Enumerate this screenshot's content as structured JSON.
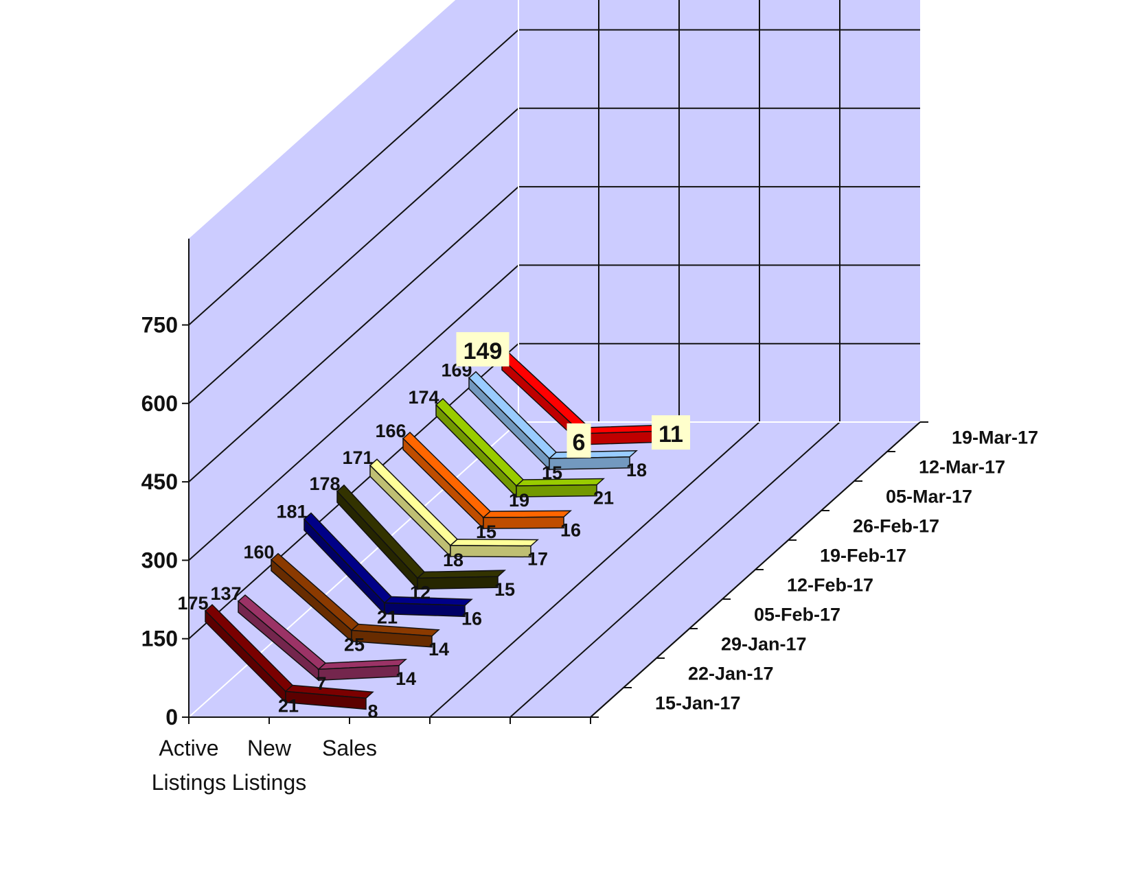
{
  "chart_data": {
    "type": "line",
    "categories": [
      {
        "line1": "Active",
        "line2": "Listings"
      },
      {
        "line1": "New",
        "line2": "Listings"
      },
      {
        "line1": "Sales",
        "line2": ""
      }
    ],
    "ylim": [
      0,
      750
    ],
    "yticks": [
      "0",
      "150",
      "300",
      "450",
      "600",
      "750"
    ],
    "grid": true,
    "view": "3d",
    "series": [
      {
        "name": "15-Jan-17",
        "color": "#7b0000",
        "values": [
          175,
          21,
          8
        ]
      },
      {
        "name": "22-Jan-17",
        "color": "#9b3366",
        "values": [
          137,
          7,
          14
        ]
      },
      {
        "name": "29-Jan-17",
        "color": "#8b3a00",
        "values": [
          160,
          25,
          14
        ]
      },
      {
        "name": "05-Feb-17",
        "color": "#000088",
        "values": [
          181,
          21,
          16
        ]
      },
      {
        "name": "12-Feb-17",
        "color": "#333300",
        "values": [
          178,
          12,
          15
        ]
      },
      {
        "name": "19-Feb-17",
        "color": "#ffff99",
        "values": [
          171,
          18,
          17
        ]
      },
      {
        "name": "26-Feb-17",
        "color": "#ff6600",
        "values": [
          166,
          15,
          16
        ]
      },
      {
        "name": "05-Mar-17",
        "color": "#99cc00",
        "values": [
          174,
          19,
          21
        ]
      },
      {
        "name": "12-Mar-17",
        "color": "#99ccff",
        "values": [
          169,
          15,
          18
        ]
      },
      {
        "name": "19-Mar-17",
        "color": "#ff0000",
        "values": [
          149,
          6,
          11
        ]
      }
    ]
  }
}
